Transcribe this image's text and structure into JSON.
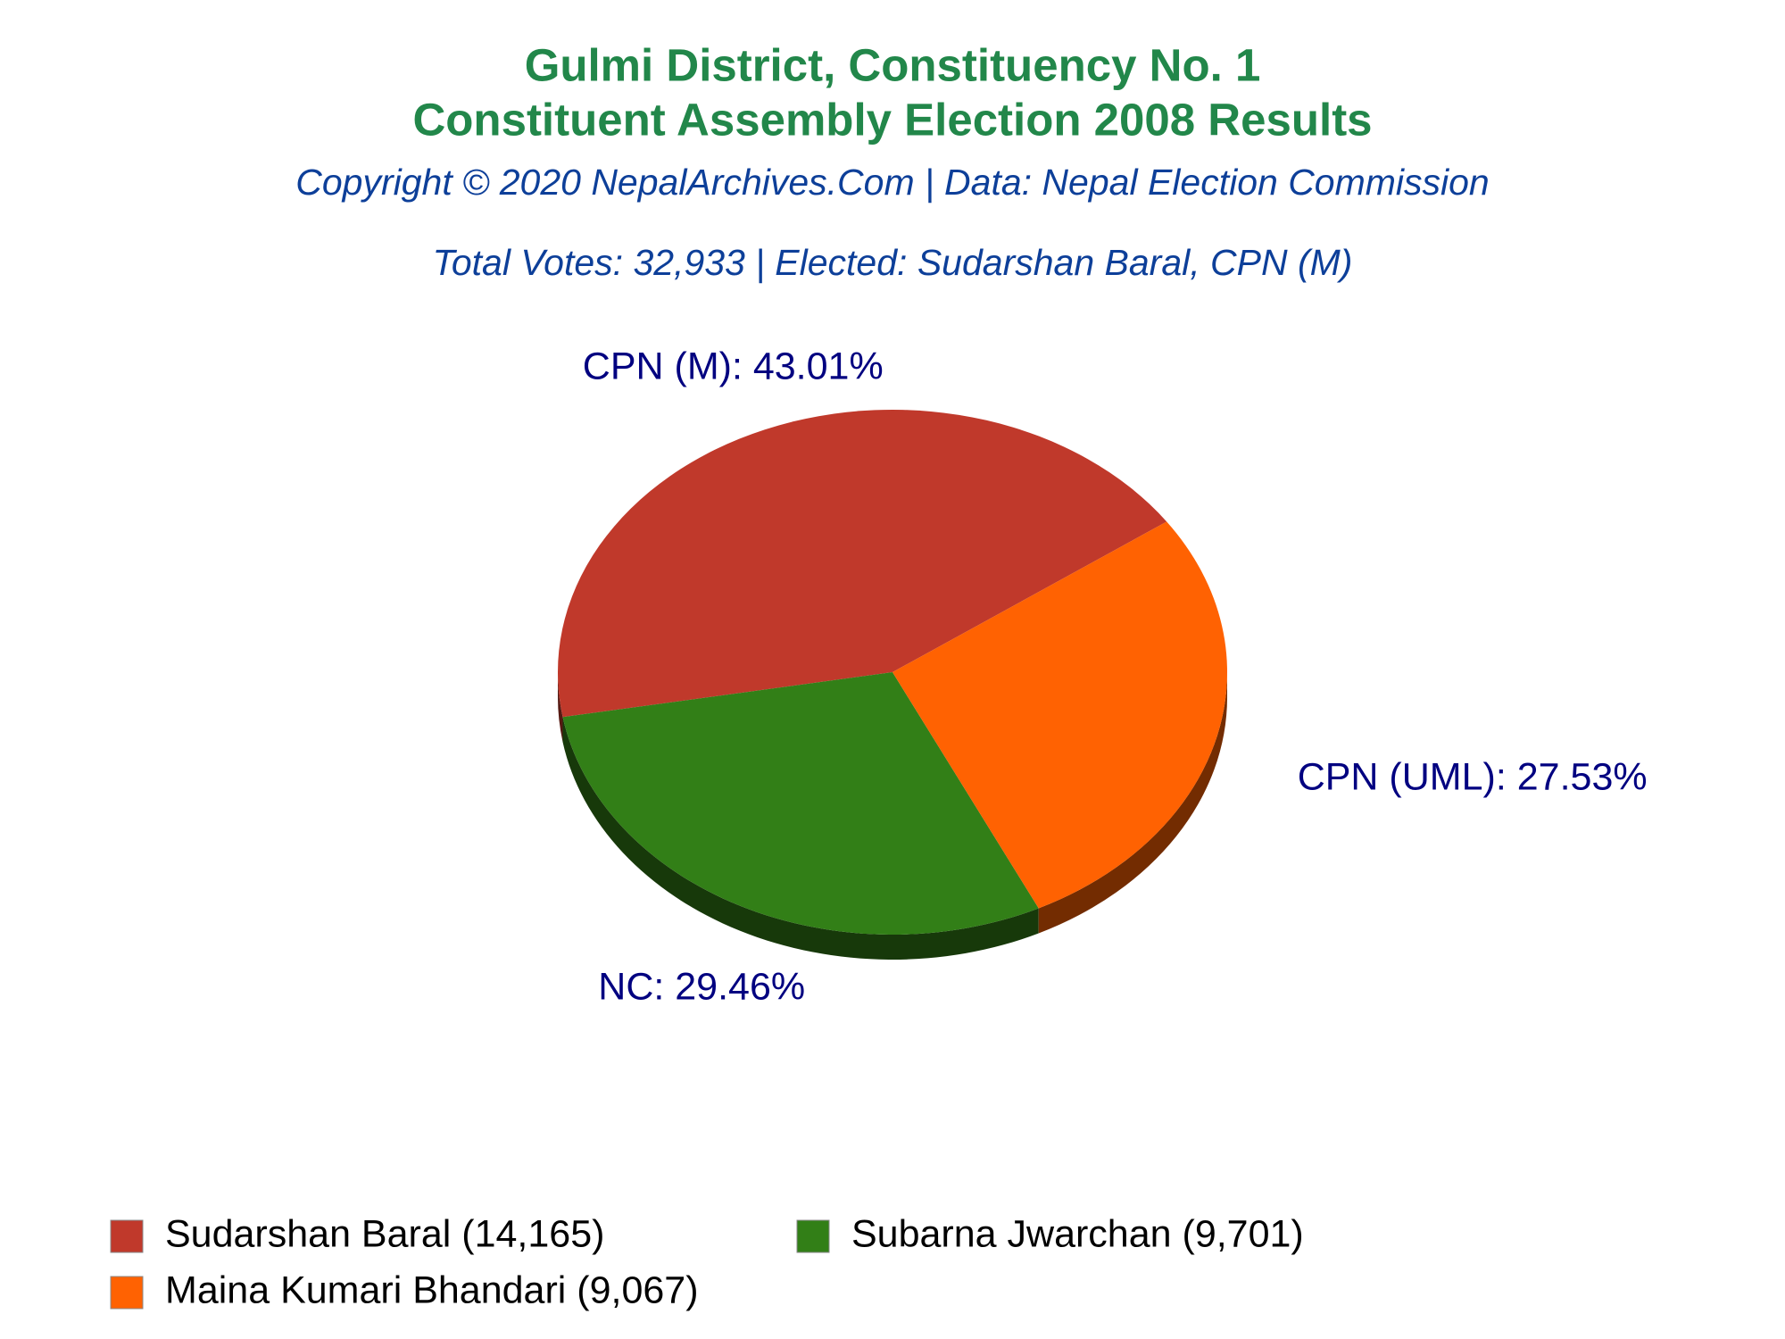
{
  "chart_data": {
    "type": "pie",
    "title": [
      "Gulmi District, Constituency No. 1",
      "Constituent Assembly Election 2008 Results"
    ],
    "subtitle": "Copyright © 2020 NepalArchives.Com | Data: Nepal Election Commission",
    "note": "Total Votes: 32,933 | Elected: Sudarshan Baral, CPN (M)",
    "categories": [
      "Sudarshan Baral (14,165)",
      "Subarna Jwarchan (9,701)",
      "Maina Kumari Bhandari (9,067)"
    ],
    "values": [
      43.01,
      29.46,
      27.53
    ],
    "value_labels": [
      "CPN (M): 43.01%",
      "NC: 29.46%",
      "CPN (UML): 27.53%"
    ],
    "colors": [
      "#c0392b",
      "#327f17",
      "#ff6202"
    ],
    "legend": "bottom"
  }
}
